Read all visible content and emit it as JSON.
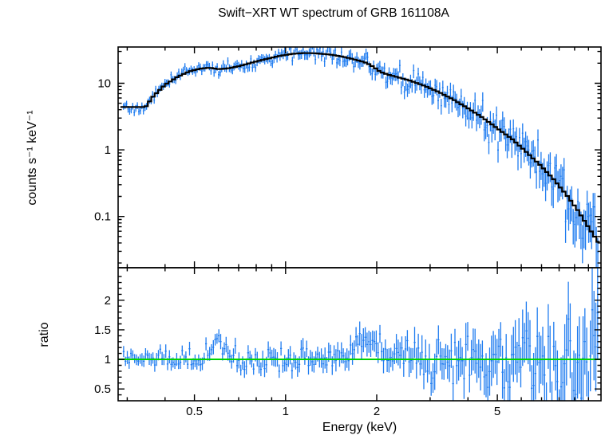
{
  "title": "Swift−XRT WT spectrum of GRB 161108A",
  "axes": {
    "x_label": "Energy (keV)",
    "y_label_top": "counts s⁻¹ keV⁻¹",
    "y_label_bottom": "ratio"
  },
  "colors": {
    "data": "#1f7cf0",
    "model": "#000000",
    "ratio_line": "#00d400",
    "frame": "#000000",
    "background": "#ffffff"
  },
  "chart_data": {
    "type": "scatter",
    "subtype": "x-ray-spectrum-with-errorbars-and-folded-model",
    "title": "Swift−XRT WT spectrum of GRB 161108A",
    "xlabel": "Energy (keV)",
    "xscale": "log",
    "xlim": [
      0.28,
      11
    ],
    "x_ticks": [
      {
        "value": 0.5,
        "label": "0.5"
      },
      {
        "value": 1,
        "label": "1"
      },
      {
        "value": 2,
        "label": "2"
      },
      {
        "value": 5,
        "label": "5"
      }
    ],
    "panels": [
      {
        "name": "spectrum",
        "ylabel": "counts s⁻¹ keV⁻¹",
        "yscale": "log",
        "ylim": [
          0.017,
          35
        ],
        "y_ticks": [
          {
            "value": 10,
            "label": "10"
          },
          {
            "value": 1,
            "label": "1"
          },
          {
            "value": 0.1,
            "label": "0.1"
          }
        ],
        "series": [
          {
            "name": "observed-counts",
            "style": "errorbar",
            "color": "#1f7cf0",
            "n_points": 310,
            "e_range_keV": [
              0.29,
              10.8
            ],
            "generated_from": "model-curve plus noise; fractional error = 0.10 + 0.05*E"
          },
          {
            "name": "folded-model",
            "style": "step-line",
            "color": "#000000",
            "points": [
              [
                0.29,
                4.4
              ],
              [
                0.345,
                4.4
              ],
              [
                0.365,
                6.3
              ],
              [
                0.4,
                9.5
              ],
              [
                0.44,
                12.5
              ],
              [
                0.48,
                15.0
              ],
              [
                0.52,
                16.5
              ],
              [
                0.56,
                17.1
              ],
              [
                0.6,
                16.3
              ],
              [
                0.64,
                16.6
              ],
              [
                0.7,
                18.0
              ],
              [
                0.78,
                20.6
              ],
              [
                0.86,
                23.0
              ],
              [
                0.95,
                25.6
              ],
              [
                1.05,
                27.6
              ],
              [
                1.15,
                28.4
              ],
              [
                1.25,
                28.2
              ],
              [
                1.4,
                27.0
              ],
              [
                1.55,
                25.0
              ],
              [
                1.7,
                22.6
              ],
              [
                1.85,
                20.2
              ],
              [
                1.95,
                17.6
              ],
              [
                2.05,
                14.9
              ],
              [
                2.2,
                13.3
              ],
              [
                2.4,
                12.0
              ],
              [
                2.6,
                10.8
              ],
              [
                2.9,
                9.0
              ],
              [
                3.2,
                7.4
              ],
              [
                3.6,
                5.6
              ],
              [
                4.0,
                4.2
              ],
              [
                4.5,
                3.0
              ],
              [
                5.0,
                2.1
              ],
              [
                5.6,
                1.45
              ],
              [
                6.2,
                0.95
              ],
              [
                6.9,
                0.6
              ],
              [
                7.6,
                0.38
              ],
              [
                8.4,
                0.22
              ],
              [
                9.2,
                0.125
              ],
              [
                10.2,
                0.06
              ],
              [
                10.9,
                0.038
              ]
            ]
          }
        ]
      },
      {
        "name": "ratio",
        "ylabel": "ratio",
        "yscale": "linear",
        "ylim": [
          0.3,
          2.55
        ],
        "y_ticks": [
          {
            "value": 2,
            "label": "2"
          },
          {
            "value": 1.5,
            "label": "1.5"
          },
          {
            "value": 1,
            "label": "1"
          },
          {
            "value": 0.5,
            "label": "0.5"
          }
        ],
        "series": [
          {
            "name": "data-to-model-ratio",
            "style": "errorbar",
            "color": "#1f7cf0",
            "n_points": 260,
            "baseline": 1,
            "sigma": "0.065 + 0.05*E",
            "features": [
              {
                "center_keV": 0.6,
                "amplitude": 0.3,
                "width_dex": 0.035,
                "note": "excess reaching ~1.5"
              },
              {
                "center_keV": 1.9,
                "amplitude": 0.32,
                "width_dex": 0.06,
                "note": "broad excess reaching ~1.8"
              },
              {
                "note": "scatter and error bars grow strongly above 4 keV, spanning most of panel"
              }
            ]
          },
          {
            "name": "unity-line",
            "style": "hline",
            "y": 1,
            "color": "#00d400"
          }
        ]
      }
    ],
    "noise": {
      "seed": 161108
    }
  }
}
